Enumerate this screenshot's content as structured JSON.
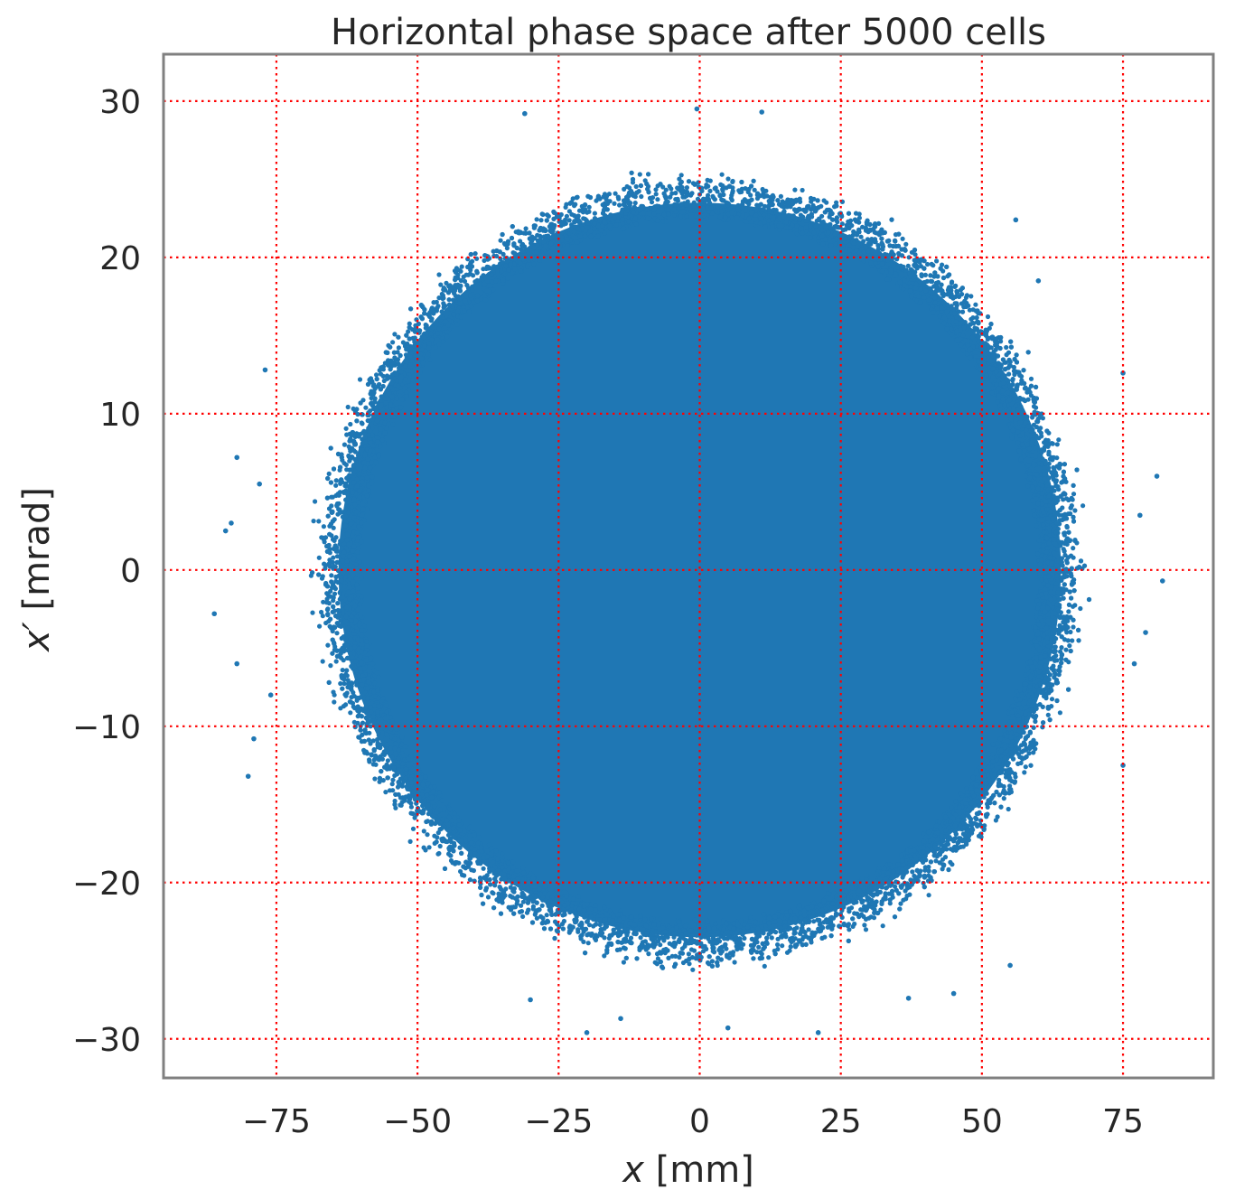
{
  "chart_data": {
    "type": "scatter",
    "title": "Horizontal phase space after 5000 cells",
    "xlabel_var": "x",
    "xlabel_unit": " [mm]",
    "ylabel_var": "x′",
    "ylabel_unit": " [mrad]",
    "xlim": [
      -95,
      91
    ],
    "ylim": [
      -32.5,
      33
    ],
    "xticks": [
      -75,
      -50,
      -25,
      0,
      25,
      50,
      75
    ],
    "xtick_labels": [
      "−75",
      "−50",
      "−25",
      "0",
      "25",
      "50",
      "75"
    ],
    "yticks": [
      -30,
      -20,
      -10,
      0,
      10,
      20,
      30
    ],
    "ytick_labels": [
      "−30",
      "−20",
      "−10",
      "0",
      "10",
      "20",
      "30"
    ],
    "grid": true,
    "grid_style": "dotted",
    "series": [
      {
        "distribution": "approximately uniform disc, dense core with scattered halo",
        "center": [
          0.0,
          0.0
        ],
        "core_half_width_x": 64,
        "core_half_width_y": 23.5,
        "halo_extent_x": [
          -86,
          83
        ],
        "halo_extent_y": [
          -29.5,
          29.5
        ],
        "sample_outliers": [
          [
            -86,
            -2.8
          ],
          [
            -84,
            2.5
          ],
          [
            -83,
            3.0
          ],
          [
            -82,
            7.2
          ],
          [
            -80,
            -13.2
          ],
          [
            -82,
            -6
          ],
          [
            -79,
            -10.8
          ],
          [
            -77,
            12.8
          ],
          [
            -78,
            5.5
          ],
          [
            -76,
            -8
          ],
          [
            -31,
            29.2
          ],
          [
            -20,
            -29.6
          ],
          [
            21,
            -29.6
          ],
          [
            11,
            29.3
          ],
          [
            -0.5,
            29.5
          ],
          [
            81,
            6
          ],
          [
            82,
            -0.7
          ],
          [
            79,
            -4
          ],
          [
            78,
            3.5
          ],
          [
            77,
            -6
          ],
          [
            55,
            -25.3
          ],
          [
            45,
            -27.1
          ],
          [
            37,
            -27.4
          ],
          [
            56,
            22.4
          ],
          [
            60,
            18.5
          ],
          [
            75,
            12.6
          ],
          [
            75,
            -12.5
          ],
          [
            -30,
            -27.5
          ],
          [
            -14,
            -28.7
          ],
          [
            5,
            -29.3
          ]
        ]
      }
    ],
    "colors": {
      "points": "#1f77b4",
      "grid": "#ff0000",
      "frame": "#808080",
      "text": "#262626"
    }
  }
}
